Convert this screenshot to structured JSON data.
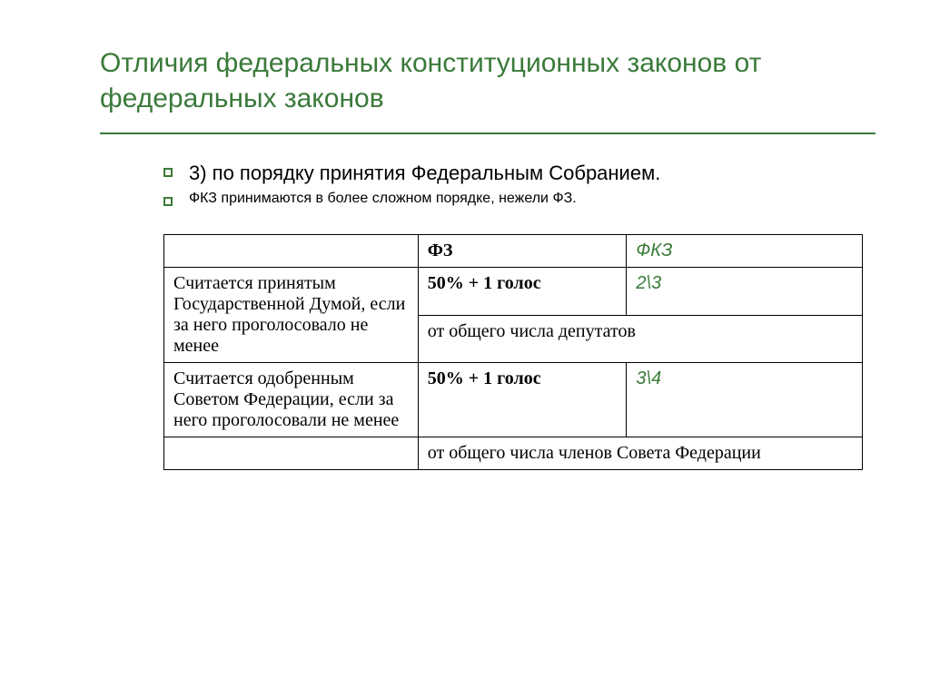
{
  "colors": {
    "accent": "#3a7a3a",
    "text": "#000000",
    "bg": "#ffffff",
    "border": "#000000"
  },
  "title": "Отличия федеральных конституционных законов от федеральных законов",
  "bullets": [
    {
      "text": "3) по порядку принятия Федеральным Собранием.",
      "size_class": "bullet-text-1"
    },
    {
      "text": "ФКЗ принимаются в более сложном порядке, нежели ФЗ.",
      "size_class": "bullet-text-2"
    }
  ],
  "table": {
    "header": {
      "c1": "",
      "c2": "ФЗ",
      "c3": "ФКЗ"
    },
    "row2": {
      "c1": "Считается принятым Государственной Думой, если за него проголосовало не менее",
      "c2": "50% + 1 голос",
      "c3": "2\\3"
    },
    "row3": {
      "span": "от общего числа депутатов"
    },
    "row4": {
      "c1": "Считается одобренным Советом Федерации, если за него проголосовали не менее",
      "c2": "50% + 1 голос",
      "c3": "3\\4"
    },
    "row5": {
      "c1": "",
      "span": "от общего числа членов Совета Федерации"
    }
  }
}
